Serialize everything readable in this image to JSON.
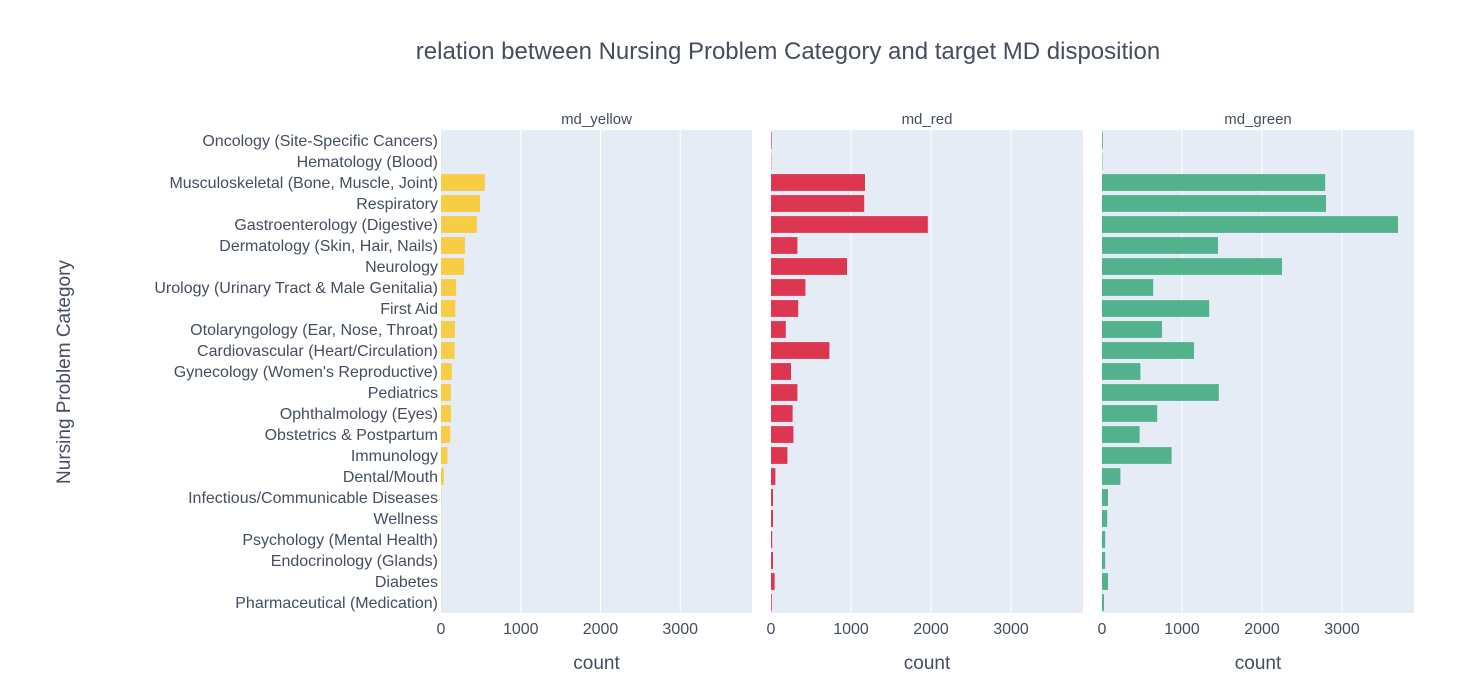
{
  "chart_data": {
    "type": "bar",
    "orientation": "horizontal",
    "title": "relation between Nursing Problem Category and target MD disposition",
    "ylabel": "Nursing Problem Category",
    "xlabel": "count",
    "xlim": [
      0,
      3900
    ],
    "xticks": [
      "0",
      "1000",
      "2000",
      "3000"
    ],
    "grid": true,
    "categories": [
      "Oncology (Site-Specific Cancers)",
      "Hematology (Blood)",
      "Musculoskeletal (Bone, Muscle, Joint)",
      "Respiratory",
      "Gastroenterology (Digestive)",
      "Dermatology (Skin, Hair, Nails)",
      "Neurology",
      "Urology (Urinary Tract & Male Genitalia)",
      "First Aid",
      "Otolaryngology (Ear, Nose, Throat)",
      "Cardiovascular (Heart/Circulation)",
      "Gynecology (Women's Reproductive)",
      "Pediatrics",
      "Ophthalmology (Eyes)",
      "Obstetrics & Postpartum",
      "Immunology",
      "Dental/Mouth",
      "Infectious/Communicable Diseases",
      "Wellness",
      "Psychology (Mental Health)",
      "Endocrinology (Glands)",
      "Diabetes",
      "Pharmaceutical (Medication)"
    ],
    "series": [
      {
        "name": "md_yellow",
        "color": "#f6cd45",
        "values": [
          2,
          2,
          550,
          490,
          450,
          300,
          290,
          190,
          180,
          175,
          170,
          135,
          125,
          125,
          115,
          80,
          35,
          5,
          3,
          2,
          2,
          3,
          2
        ]
      },
      {
        "name": "md_red",
        "color": "#dd3650",
        "values": [
          8,
          3,
          1175,
          1165,
          1960,
          330,
          950,
          430,
          340,
          185,
          730,
          250,
          330,
          270,
          280,
          205,
          55,
          25,
          25,
          15,
          25,
          45,
          10
        ]
      },
      {
        "name": "md_green",
        "color": "#52b28d",
        "values": [
          10,
          5,
          2790,
          2800,
          3700,
          1450,
          2250,
          640,
          1340,
          750,
          1150,
          480,
          1460,
          690,
          470,
          870,
          230,
          75,
          65,
          40,
          40,
          75,
          25
        ]
      }
    ]
  }
}
